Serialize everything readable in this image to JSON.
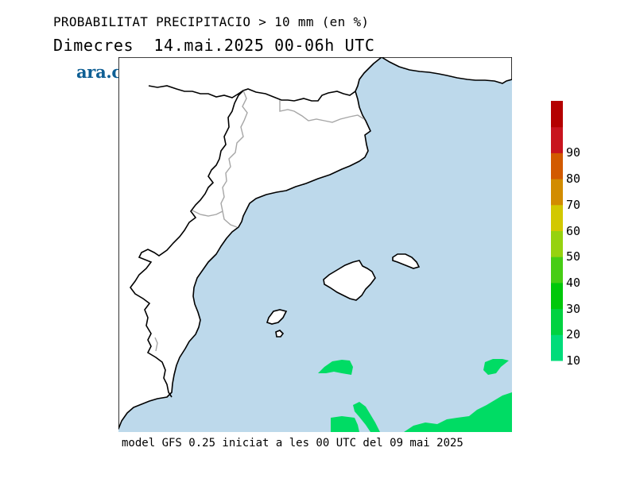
{
  "header": {
    "title": "PROBABILITAT PRECIPITACIO > 10 mm (en %)",
    "subtitle": "Dimecres  14.mai.2025 00-06h UTC"
  },
  "logo": {
    "text": "ara.cat",
    "color": "#0f5f94"
  },
  "footer": {
    "text": "model GFS 0.25 iniciat a les 00 UTC del 09 mai 2025"
  },
  "map": {
    "sea_color": "#bdd9eb",
    "land_color": "#ffffff",
    "coast_color": "#000000",
    "border_color": "#a6a6a6",
    "precip_color": "#00dc64"
  },
  "colorbar": {
    "labels": [
      "10",
      "20",
      "30",
      "40",
      "50",
      "60",
      "70",
      "80",
      "90"
    ],
    "colors": [
      "#00dc7a",
      "#00d240",
      "#00c80a",
      "#46cd14",
      "#96d20f",
      "#d2c800",
      "#d28c00",
      "#d25a00",
      "#c8141e",
      "#b40000"
    ]
  }
}
